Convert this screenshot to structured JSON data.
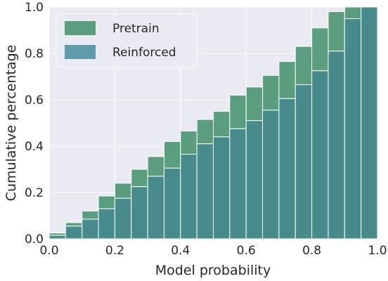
{
  "chart_data": {
    "type": "bar",
    "title": "",
    "xlabel": "Model probability",
    "ylabel": "Cumulative percentage",
    "xlim": [
      0.0,
      1.0
    ],
    "ylim": [
      0.0,
      1.0
    ],
    "xticks": [
      "0.0",
      "0.2",
      "0.4",
      "0.6",
      "0.8",
      "1.0"
    ],
    "yticks": [
      "0.0",
      "0.2",
      "0.4",
      "0.6",
      "0.8",
      "1.0"
    ],
    "grid": true,
    "legend_position": "top-left",
    "bin_edges": [
      0.0,
      0.05,
      0.1,
      0.15,
      0.2,
      0.25,
      0.3,
      0.35,
      0.4,
      0.45,
      0.5,
      0.55,
      0.6,
      0.65,
      0.7,
      0.75,
      0.8,
      0.85,
      0.9,
      0.95,
      1.0
    ],
    "series": [
      {
        "name": "Pretrain",
        "color": "#5b9e7f",
        "values": [
          0.025,
          0.07,
          0.12,
          0.185,
          0.24,
          0.3,
          0.355,
          0.42,
          0.465,
          0.515,
          0.55,
          0.62,
          0.655,
          0.705,
          0.765,
          0.83,
          0.91,
          0.98,
          1.0,
          1.0
        ]
      },
      {
        "name": "Reinforced",
        "color": "#5f9ba8",
        "values": [
          0.015,
          0.055,
          0.085,
          0.13,
          0.175,
          0.225,
          0.27,
          0.305,
          0.365,
          0.41,
          0.44,
          0.475,
          0.51,
          0.555,
          0.605,
          0.665,
          0.725,
          0.81,
          0.95,
          1.0
        ]
      }
    ],
    "overlap_color": "#488b8c"
  }
}
